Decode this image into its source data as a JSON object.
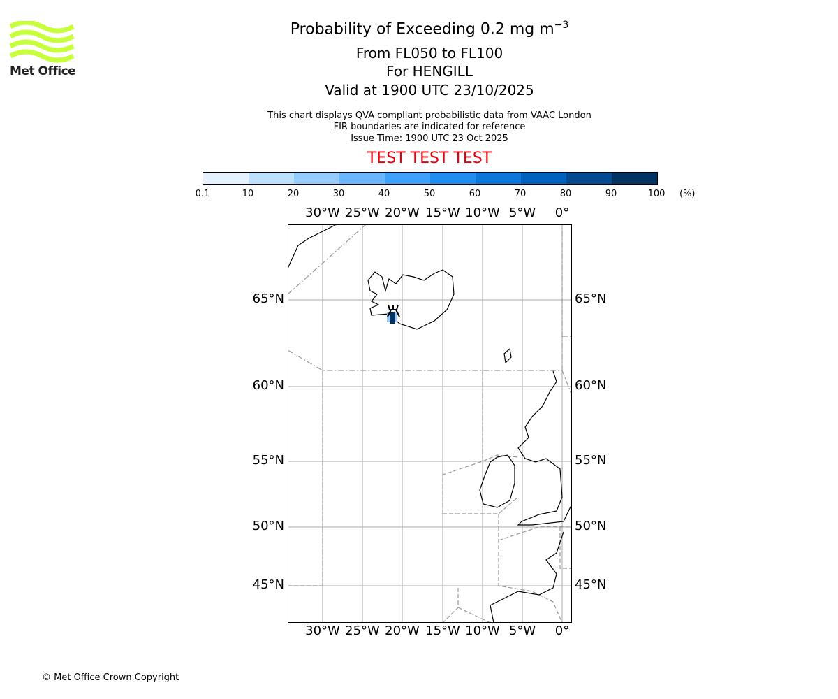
{
  "logo": {
    "text": "Met Office",
    "color": "#c8ff3c"
  },
  "title": {
    "main": "Probability of Exceeding 0.2 mg m",
    "units_sup": "−3",
    "levels": "From FL050 to FL100",
    "location": "For HENGILL",
    "valid": "Valid at 1900 UTC 23/10/2025"
  },
  "info": [
    "This chart displays QVA compliant probabilistic data from VAAC London",
    "FIR boundaries are indicated for reference",
    "Issue Time: 1900 UTC 23 Oct 2025"
  ],
  "test_banner": "TEST TEST TEST",
  "colorbar": {
    "ticks": [
      "0.1",
      "10",
      "20",
      "30",
      "40",
      "50",
      "60",
      "70",
      "80",
      "90",
      "100"
    ],
    "unit": "(%)",
    "colors": [
      "#e5f2fd",
      "#bde0fd",
      "#95cbfd",
      "#6bb6fd",
      "#3ea1fc",
      "#1f8ef0",
      "#0c77da",
      "#0062bf",
      "#034a91",
      "#023362"
    ]
  },
  "map": {
    "lon_labels": [
      "30°W",
      "25°W",
      "20°W",
      "15°W",
      "10°W",
      "5°W",
      "0°"
    ],
    "lat_labels": [
      "65°N",
      "60°N",
      "55°N",
      "50°N",
      "45°N"
    ],
    "volcano": "HENGILL",
    "max_probability_band": "90-100"
  },
  "copyright": "© Met Office Crown Copyright"
}
